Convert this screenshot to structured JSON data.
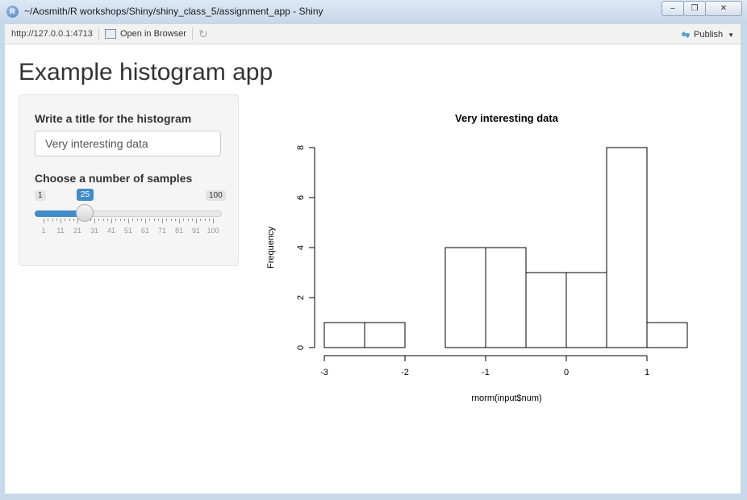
{
  "window": {
    "title": "~/Aosmith/R workshops/Shiny/shiny_class_5/assignment_app - Shiny",
    "app_icon": "R",
    "buttons": [
      "minimize-icon",
      "restore-icon",
      "close-icon"
    ]
  },
  "toolbar": {
    "url": "http://127.0.0.1:4713",
    "open_in_browser": "Open in Browser",
    "publish": "Publish"
  },
  "page": {
    "title": "Example histogram app"
  },
  "sidebar": {
    "title_label": "Write a title for the histogram",
    "title_value": "Very interesting data",
    "samples_label": "Choose a number of samples",
    "slider": {
      "min": 1,
      "max": 100,
      "value": 25,
      "min_label": "1",
      "max_label": "100",
      "value_label": "25",
      "tick_labels": [
        "1",
        "11",
        "21",
        "31",
        "41",
        "51",
        "61",
        "71",
        "81",
        "91",
        "100"
      ]
    }
  },
  "chart_data": {
    "type": "bar",
    "title": "Very interesting data",
    "xlabel": "rnorm(input$num)",
    "ylabel": "Frequency",
    "bins": [
      {
        "start": -3.0,
        "end": -2.5,
        "count": 1
      },
      {
        "start": -2.5,
        "end": -2.0,
        "count": 1
      },
      {
        "start": -2.0,
        "end": -1.5,
        "count": 0
      },
      {
        "start": -1.5,
        "end": -1.0,
        "count": 4
      },
      {
        "start": -1.0,
        "end": -0.5,
        "count": 4
      },
      {
        "start": -0.5,
        "end": 0.0,
        "count": 3
      },
      {
        "start": 0.0,
        "end": 0.5,
        "count": 3
      },
      {
        "start": 0.5,
        "end": 1.0,
        "count": 8
      },
      {
        "start": 1.0,
        "end": 1.5,
        "count": 1
      }
    ],
    "xticks": [
      -3,
      -2,
      -1,
      0,
      1
    ],
    "yticks": [
      0,
      2,
      4,
      6,
      8
    ],
    "xlim": [
      -3,
      1.5
    ],
    "ylim": [
      0,
      8
    ],
    "grid": false
  }
}
